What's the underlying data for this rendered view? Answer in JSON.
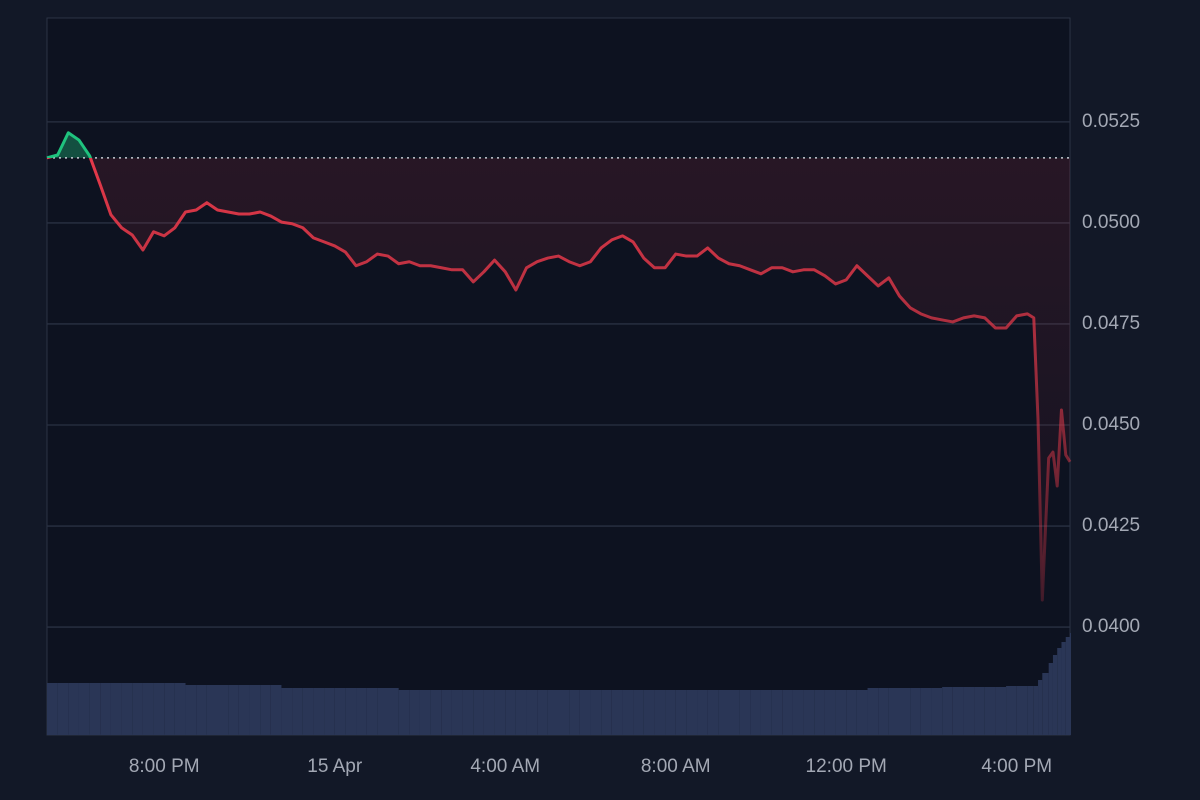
{
  "chart_data": {
    "type": "line",
    "x": [
      -6.75,
      -6.5,
      -6.25,
      -6,
      -5.75,
      -5.5,
      -5.25,
      -5,
      -4.75,
      -4.5,
      -4.25,
      -4,
      -3.75,
      -3.5,
      -3.25,
      -3,
      -2.75,
      -2.5,
      -2.25,
      -2,
      -1.75,
      -1.5,
      -1.25,
      -1,
      -0.75,
      -0.5,
      -0.25,
      0,
      0.25,
      0.5,
      0.75,
      1,
      1.25,
      1.5,
      1.75,
      2,
      2.25,
      2.5,
      2.75,
      3,
      3.25,
      3.5,
      3.75,
      4,
      4.25,
      4.5,
      4.75,
      5,
      5.25,
      5.5,
      5.75,
      6,
      6.25,
      6.5,
      6.75,
      7,
      7.25,
      7.5,
      7.75,
      8,
      8.25,
      8.5,
      8.75,
      9,
      9.25,
      9.5,
      9.75,
      10,
      10.25,
      10.5,
      10.75,
      11,
      11.25,
      11.5,
      11.75,
      12,
      12.25,
      12.5,
      12.75,
      13,
      13.25,
      13.5,
      13.75,
      14,
      14.25,
      14.5,
      14.75,
      15,
      15.25,
      15.5,
      15.75,
      16,
      16.25,
      16.4,
      16.5,
      16.6,
      16.75,
      16.85,
      16.95,
      17.05,
      17.15,
      17.25
    ],
    "values": [
      0.05161,
      0.05168,
      0.05223,
      0.05205,
      0.05166,
      0.05094,
      0.0502,
      0.04988,
      0.0497,
      0.04933,
      0.04978,
      0.04968,
      0.04988,
      0.05027,
      0.05032,
      0.0505,
      0.05032,
      0.05027,
      0.05022,
      0.05022,
      0.05027,
      0.05017,
      0.05002,
      0.04998,
      0.04988,
      0.04963,
      0.04953,
      0.04943,
      0.04928,
      0.04894,
      0.04904,
      0.04923,
      0.04918,
      0.04899,
      0.04904,
      0.04894,
      0.04894,
      0.04889,
      0.04884,
      0.04884,
      0.04854,
      0.04879,
      0.04908,
      0.04879,
      0.04834,
      0.04889,
      0.04904,
      0.04913,
      0.04918,
      0.04904,
      0.04894,
      0.04904,
      0.04938,
      0.04958,
      0.04968,
      0.04953,
      0.04913,
      0.04889,
      0.04889,
      0.04923,
      0.04918,
      0.04918,
      0.04938,
      0.04913,
      0.04899,
      0.04894,
      0.04884,
      0.04874,
      0.04889,
      0.04889,
      0.04879,
      0.04884,
      0.04884,
      0.04869,
      0.04849,
      0.04859,
      0.04894,
      0.04869,
      0.04844,
      0.04864,
      0.04819,
      0.0479,
      0.04775,
      0.04765,
      0.0476,
      0.04755,
      0.04765,
      0.0477,
      0.04765,
      0.0474,
      0.0474,
      0.0477,
      0.04775,
      0.04765,
      0.04512,
      0.04067,
      0.04418,
      0.04433,
      0.04349,
      0.04537,
      0.04426,
      0.04409
    ],
    "volume": [
      52,
      52,
      52,
      52,
      52,
      52,
      52,
      52,
      52,
      52,
      52,
      52,
      52,
      50,
      50,
      50,
      50,
      50,
      50,
      50,
      50,
      50,
      47,
      47,
      47,
      47,
      47,
      47,
      47,
      47,
      47,
      47,
      47,
      45,
      45,
      45,
      45,
      45,
      45,
      45,
      45,
      45,
      45,
      45,
      45,
      45,
      45,
      45,
      45,
      45,
      45,
      45,
      45,
      45,
      45,
      45,
      45,
      45,
      45,
      45,
      45,
      45,
      45,
      45,
      45,
      45,
      45,
      45,
      45,
      45,
      45,
      45,
      45,
      45,
      45,
      45,
      45,
      47,
      47,
      47,
      47,
      47,
      47,
      47,
      48,
      48,
      48,
      48,
      48,
      48,
      49,
      49,
      49,
      49,
      55,
      62,
      72,
      80,
      87,
      93,
      98,
      102
    ],
    "vlim": [
      0,
      110
    ],
    "baseline": 0.05161,
    "up_color": "#1fc37e",
    "down_color": "#e8394a",
    "volume_color": "#2a3656",
    "xlim": [
      -6.75,
      17.25
    ],
    "xticks": [
      {
        "value": -4,
        "label": "8:00 PM"
      },
      {
        "value": 0,
        "label": "15 Apr"
      },
      {
        "value": 4,
        "label": "4:00 AM"
      },
      {
        "value": 8,
        "label": "8:00 AM"
      },
      {
        "value": 12,
        "label": "12:00 PM"
      },
      {
        "value": 16,
        "label": "4:00 PM"
      }
    ],
    "ylim": [
      0.03733,
      0.05507
    ],
    "yticks": [
      {
        "value": 0.04,
        "label": "0.0400"
      },
      {
        "value": 0.0425,
        "label": "0.0425"
      },
      {
        "value": 0.045,
        "label": "0.0450"
      },
      {
        "value": 0.0475,
        "label": "0.0475"
      },
      {
        "value": 0.05,
        "label": "0.0500"
      },
      {
        "value": 0.0525,
        "label": "0.0525"
      }
    ],
    "grid": true
  }
}
